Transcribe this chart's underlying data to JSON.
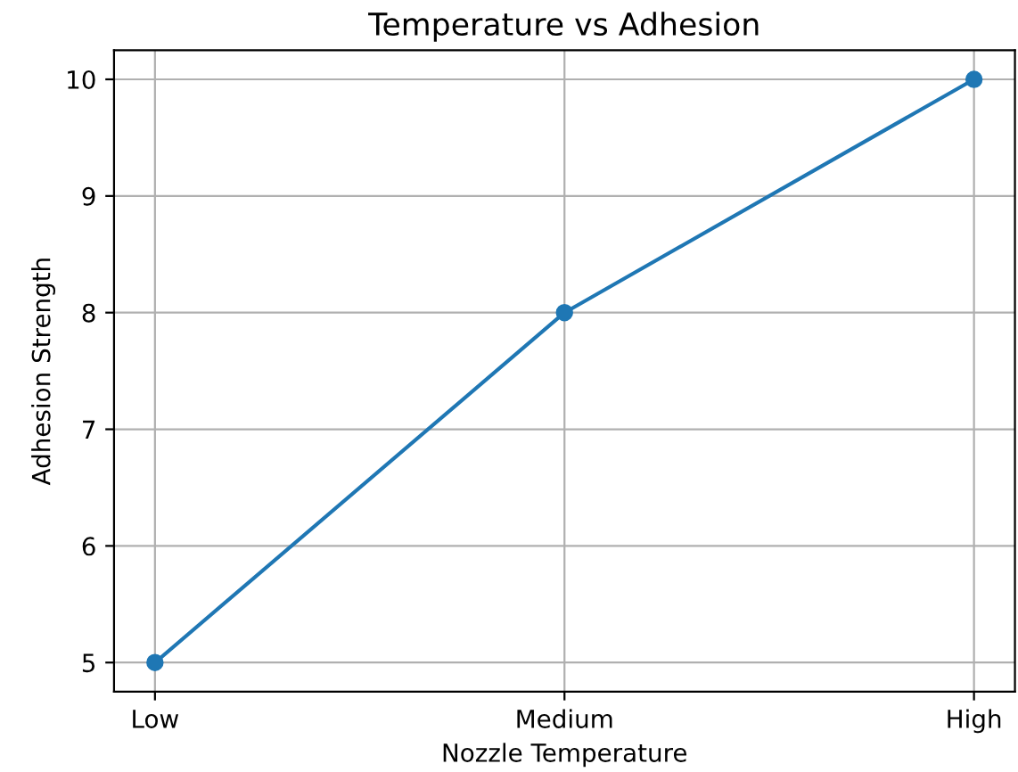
{
  "chart_data": {
    "type": "line",
    "title": "Temperature vs Adhesion",
    "xlabel": "Nozzle Temperature",
    "ylabel": "Adhesion Strength",
    "categories": [
      "Low",
      "Medium",
      "High"
    ],
    "series": [
      {
        "color": "#1f77b4",
        "values": [
          5,
          8,
          10
        ]
      }
    ],
    "ylim": [
      4.75,
      10.25
    ],
    "yticks": [
      5,
      6,
      7,
      8,
      9,
      10
    ],
    "grid": true,
    "marker": "circle",
    "line_style": "solid"
  }
}
